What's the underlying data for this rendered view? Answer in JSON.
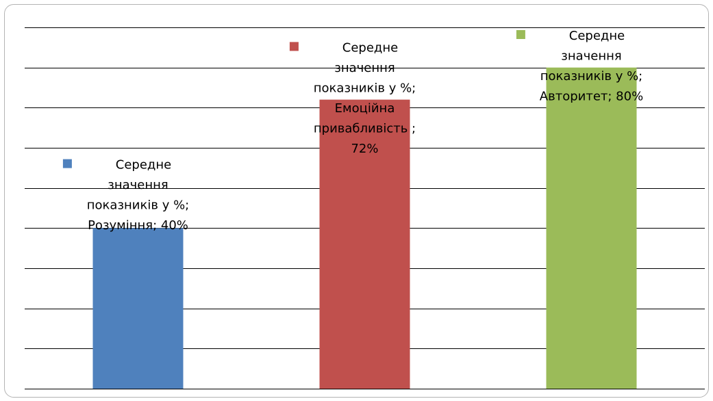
{
  "chart_data": {
    "type": "bar",
    "categories": [
      "Розуміння",
      "Емоційна привабливість ",
      "Авторитет"
    ],
    "series": [
      {
        "name": "Середне значення показників у %",
        "values": [
          40,
          72,
          80
        ],
        "colors": [
          "#4f81bd",
          "#c0504d",
          "#9bbb59"
        ]
      }
    ],
    "data_labels": [
      [
        "Середне",
        "значення",
        "показників у %;",
        "Розуміння; 40%"
      ],
      [
        "Середне",
        "значення",
        "показників у %;",
        "Емоційна",
        "привабливість ;",
        "72%"
      ],
      [
        "Середне",
        "значення",
        "показників у %;",
        "Авторитет; 80%"
      ]
    ],
    "data_label_key_colors": [
      "#4f81bd",
      "#c0504d",
      "#9bbb59"
    ],
    "ylim": [
      0,
      90
    ],
    "ytick_step": 10,
    "grid": true,
    "axes_visible": false
  }
}
